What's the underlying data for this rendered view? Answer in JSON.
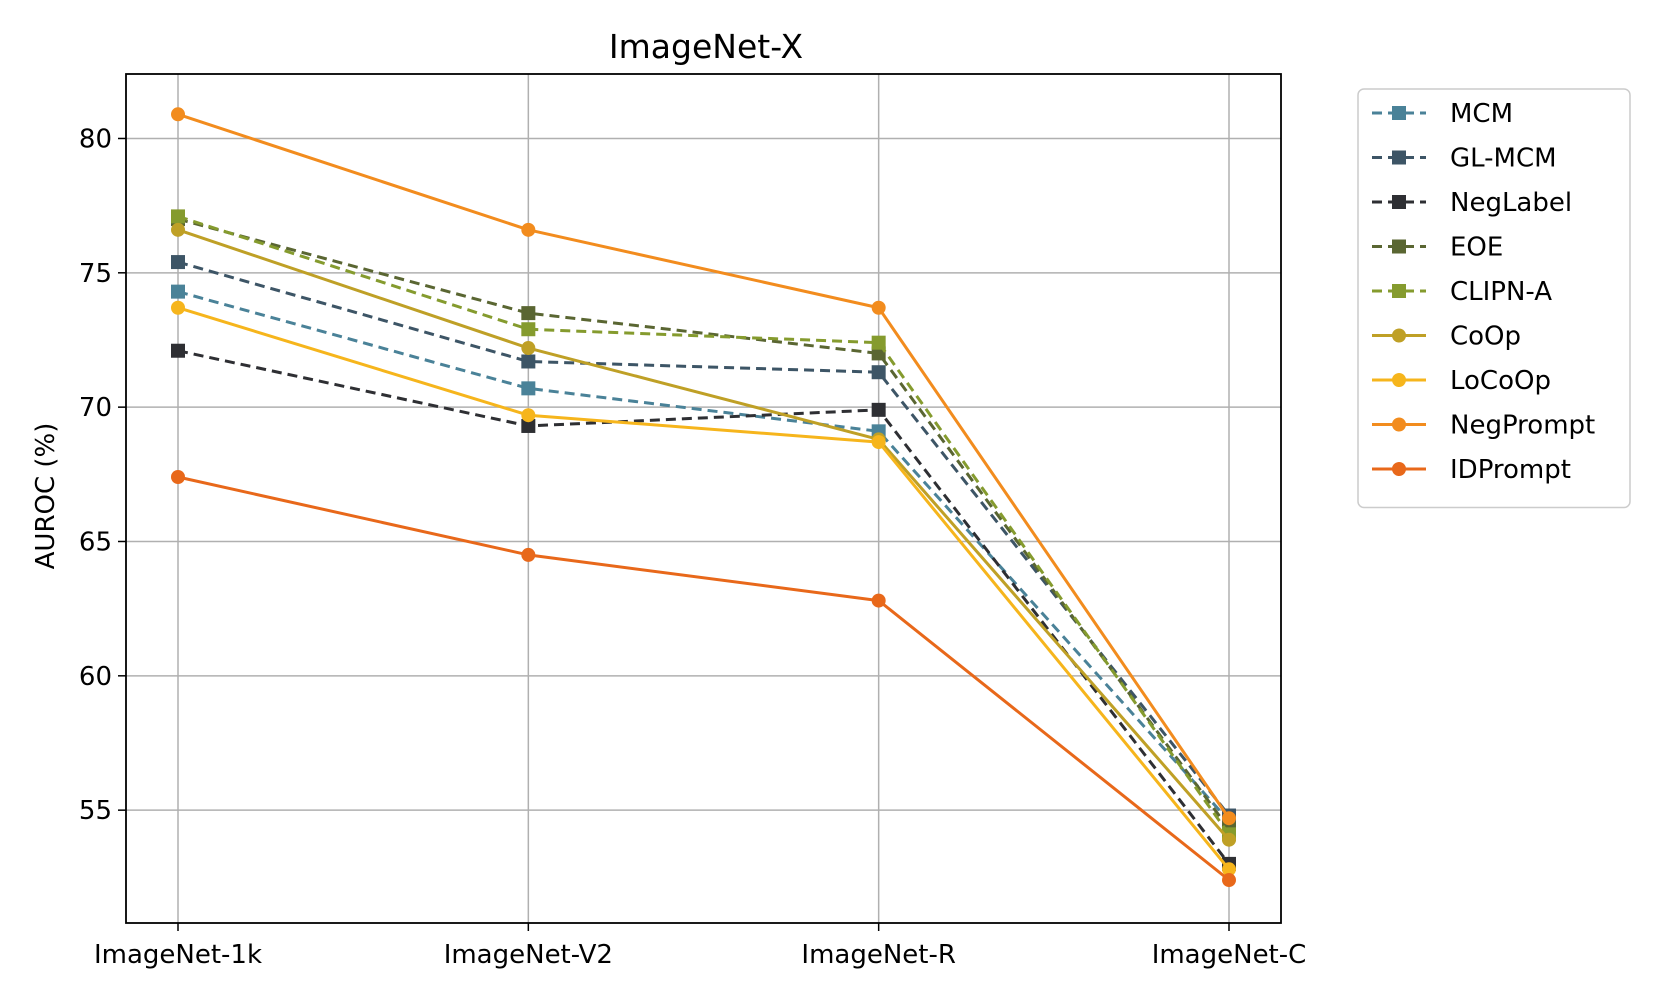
{
  "chart_data": {
    "type": "line",
    "title": "ImageNet-X",
    "xlabel": "",
    "ylabel": "AUROC (%)",
    "categories": [
      "ImageNet-1k",
      "ImageNet-V2",
      "ImageNet-R",
      "ImageNet-C"
    ],
    "ylim": [
      50.8,
      82.4
    ],
    "yticks": [
      55,
      60,
      65,
      70,
      75,
      80
    ],
    "grid": true,
    "legend_position": "outside-right-top",
    "series": [
      {
        "name": "MCM",
        "values": [
          74.3,
          70.7,
          69.1,
          54.6
        ],
        "color": "#4a8298",
        "dashed": true,
        "marker": "square"
      },
      {
        "name": "GL-MCM",
        "values": [
          75.4,
          71.7,
          71.3,
          54.8
        ],
        "color": "#3d5566",
        "dashed": true,
        "marker": "square"
      },
      {
        "name": "NegLabel",
        "values": [
          72.1,
          69.3,
          69.9,
          53.0
        ],
        "color": "#2e2f33",
        "dashed": true,
        "marker": "square"
      },
      {
        "name": "EOE",
        "values": [
          77.0,
          73.5,
          72.0,
          54.3
        ],
        "color": "#5a6632",
        "dashed": true,
        "marker": "square"
      },
      {
        "name": "CLIPN-A",
        "values": [
          77.1,
          72.9,
          72.4,
          54.1
        ],
        "color": "#859b2e",
        "dashed": true,
        "marker": "square"
      },
      {
        "name": "CoOp",
        "values": [
          76.6,
          72.2,
          68.8,
          53.9
        ],
        "color": "#bfa026",
        "dashed": false,
        "marker": "circle"
      },
      {
        "name": "LoCoOp",
        "values": [
          73.7,
          69.7,
          68.7,
          52.8
        ],
        "color": "#f6b51c",
        "dashed": false,
        "marker": "circle"
      },
      {
        "name": "NegPrompt",
        "values": [
          80.9,
          76.6,
          73.7,
          54.7
        ],
        "color": "#f28c1e",
        "dashed": false,
        "marker": "circle"
      },
      {
        "name": "IDPrompt",
        "values": [
          67.4,
          64.5,
          62.8,
          52.4
        ],
        "color": "#e8681a",
        "dashed": false,
        "marker": "circle"
      }
    ]
  }
}
